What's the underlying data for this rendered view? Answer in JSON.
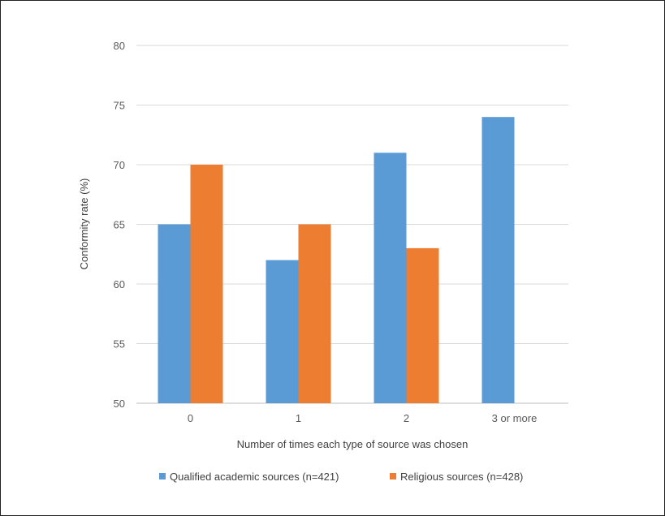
{
  "chart_data": {
    "type": "bar",
    "title": "",
    "xlabel": "Number of times each type of source was chosen",
    "ylabel": "Conformity rate (%)",
    "categories": [
      "0",
      "1",
      "2",
      "3 or more"
    ],
    "series": [
      {
        "name": "Qualified academic sources (n=421)",
        "color": "#5B9BD5",
        "values": [
          65,
          62,
          71,
          74
        ]
      },
      {
        "name": "Religious sources (n=428)",
        "color": "#ED7D31",
        "values": [
          70,
          65,
          63,
          null
        ]
      }
    ],
    "ylim": [
      50,
      80
    ],
    "yticks": [
      50,
      55,
      60,
      65,
      70,
      75,
      80
    ],
    "grid": true,
    "legend_position": "bottom"
  }
}
